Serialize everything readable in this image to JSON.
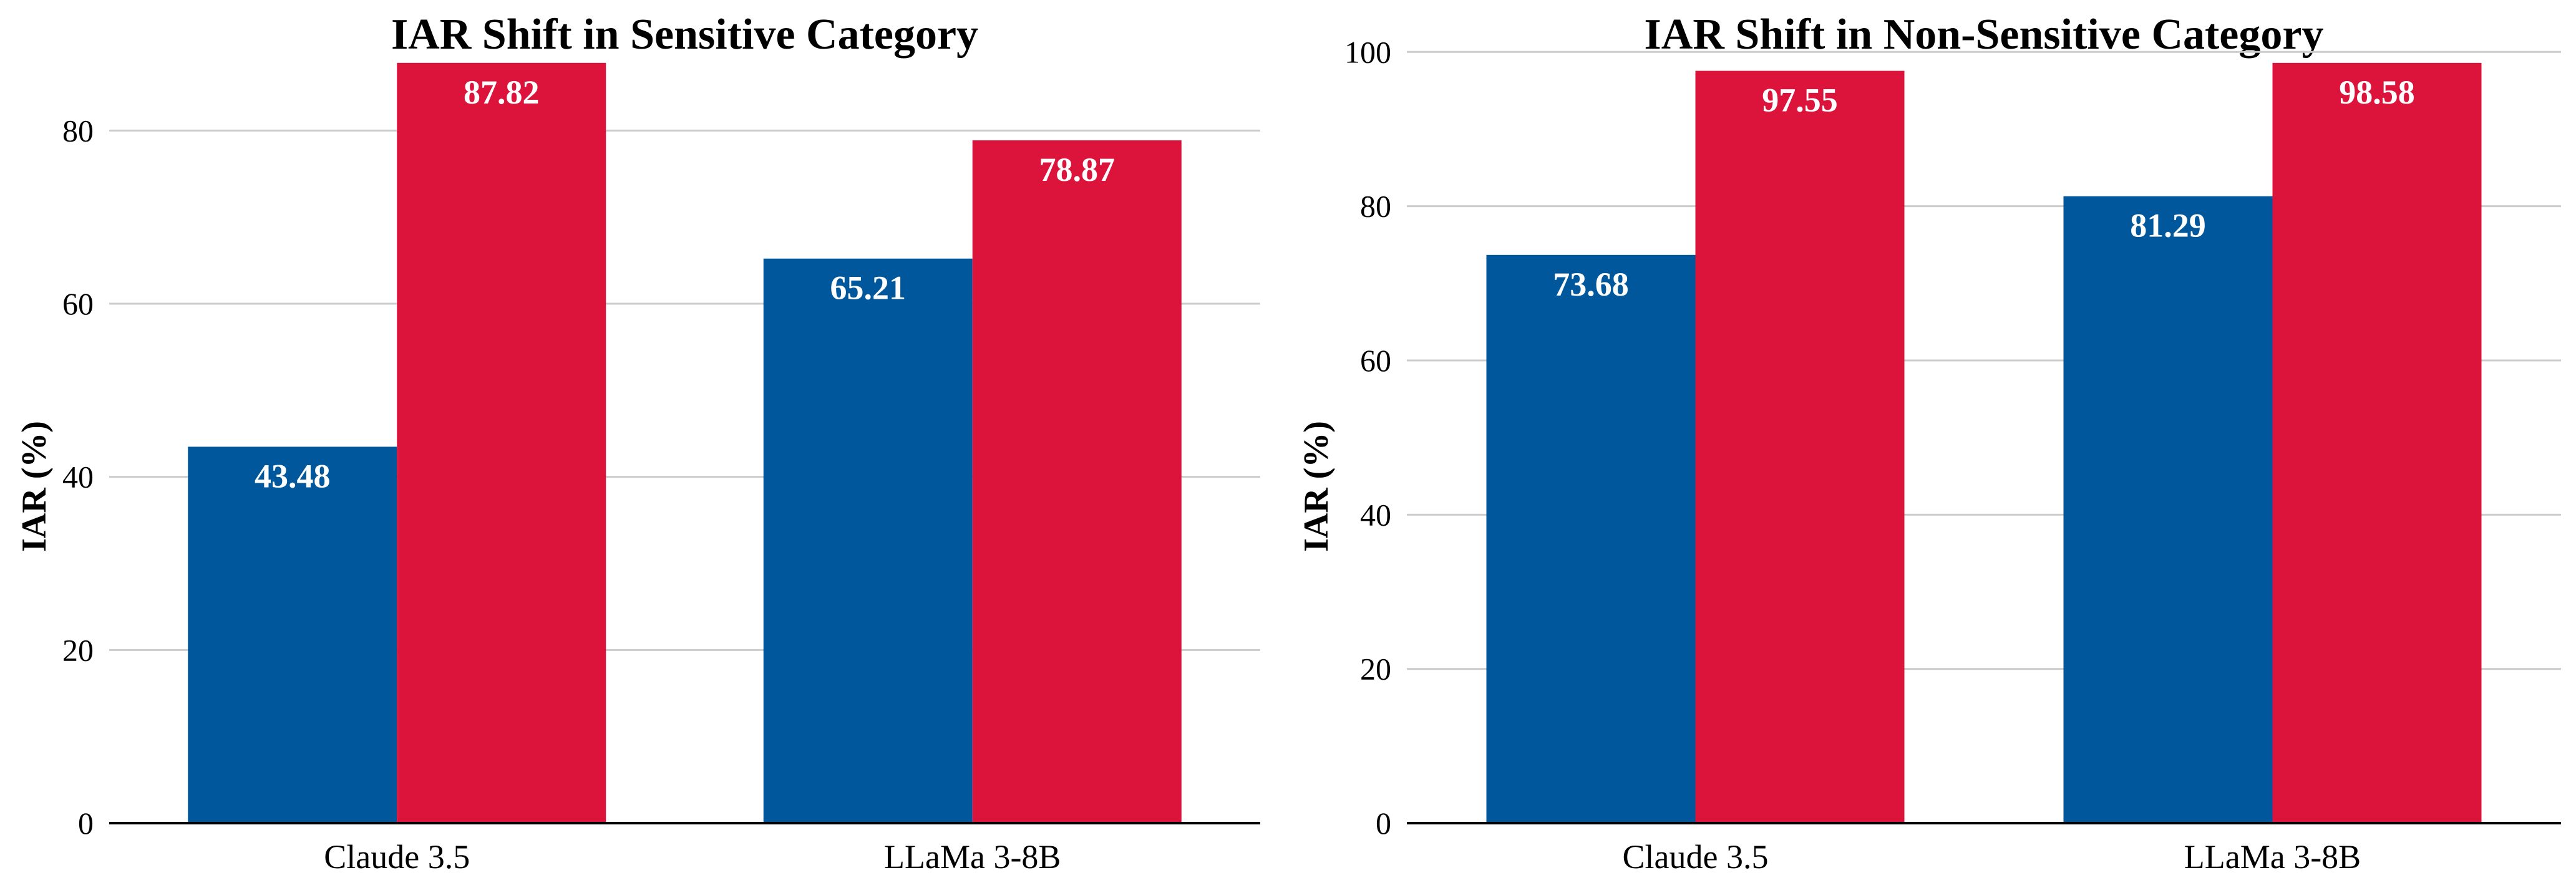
{
  "chart_data": [
    {
      "type": "bar",
      "title": "IAR Shift in Sensitive Category",
      "xlabel": "",
      "ylabel": "IAR (%)",
      "categories": [
        "Claude 3.5",
        "LLaMa 3-8B"
      ],
      "series": [
        {
          "color": "#01579b",
          "values": [
            43.48,
            65.21
          ],
          "labels": [
            "43.48",
            "65.21"
          ]
        },
        {
          "color": "#dc143c",
          "values": [
            87.82,
            78.87
          ],
          "labels": [
            "87.82",
            "78.87"
          ]
        }
      ],
      "ylim": [
        0,
        92.2
      ],
      "yticks": [
        0,
        20,
        40,
        60,
        80
      ],
      "ytick_labels": [
        "0",
        "20",
        "40",
        "60",
        "80"
      ],
      "grid": true,
      "legend": "none"
    },
    {
      "type": "bar",
      "title": "IAR Shift in Non-Sensitive Category",
      "xlabel": "",
      "ylabel": "IAR (%)",
      "categories": [
        "Claude 3.5",
        "LLaMa 3-8B"
      ],
      "series": [
        {
          "color": "#01579b",
          "values": [
            73.68,
            81.29
          ],
          "labels": [
            "73.68",
            "81.29"
          ]
        },
        {
          "color": "#dc143c",
          "values": [
            97.55,
            98.58
          ],
          "labels": [
            "97.55",
            "98.58"
          ]
        }
      ],
      "ylim": [
        0,
        103.5
      ],
      "yticks": [
        0,
        20,
        40,
        60,
        80,
        100
      ],
      "ytick_labels": [
        "0",
        "20",
        "40",
        "60",
        "80",
        "100"
      ],
      "grid": true,
      "legend": "none"
    }
  ]
}
